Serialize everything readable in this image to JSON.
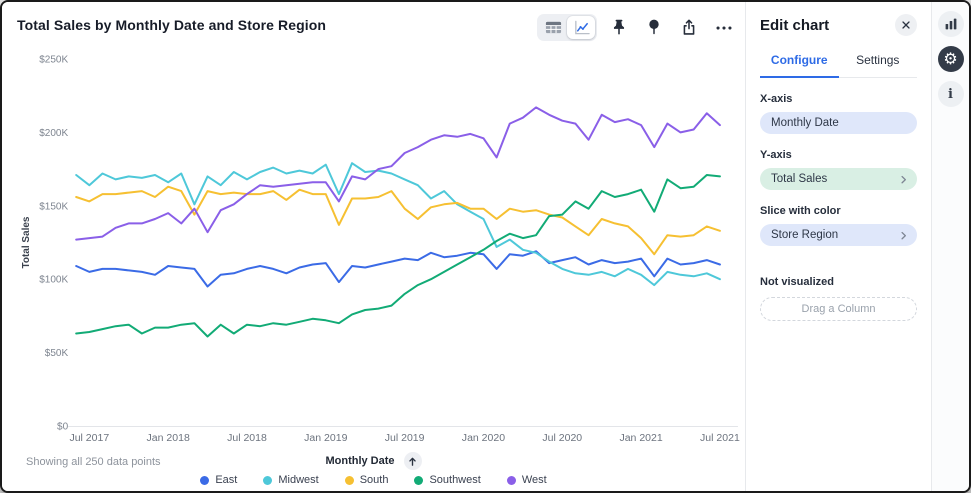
{
  "chart": {
    "title": "Total Sales by Monthly Date and Store Region",
    "footnote": "Showing all 250 data points",
    "x_axis_title": "Monthly Date",
    "y_axis_title": "Total Sales"
  },
  "toolbar": {
    "icons": [
      "table-view",
      "chart-view",
      "pin",
      "insight",
      "export",
      "more-options"
    ],
    "selected_view": "chart-view"
  },
  "panel": {
    "title": "Edit chart",
    "close_icon": "close-x",
    "tabs": [
      {
        "label": "Configure",
        "active": true
      },
      {
        "label": "Settings",
        "active": false
      }
    ],
    "fields": [
      {
        "label": "X-axis",
        "value": "Monthly Date",
        "pill_color": "#dfe7fa",
        "chevron": false
      },
      {
        "label": "Y-axis",
        "value": "Total Sales",
        "pill_color": "#d9efe4",
        "chevron": true
      },
      {
        "label": "Slice with color",
        "value": "Store Region",
        "pill_color": "#dfe7fa",
        "chevron": true
      }
    ],
    "not_visualized_label": "Not visualized",
    "drag_placeholder": "Drag a Column",
    "accent_color": "#2e6be6"
  },
  "rail": {
    "icons": [
      "chart-type",
      "settings-gear",
      "info"
    ],
    "active": "settings-gear"
  },
  "chart_data": {
    "type": "line",
    "title": "Total Sales by Monthly Date and Store Region",
    "xlabel": "Monthly Date",
    "ylabel": "Total Sales",
    "ylim": [
      0,
      250
    ],
    "y_unit": "$K (thousand dollars)",
    "grid": false,
    "legend_position": "bottom",
    "points_per_series": 50,
    "x_start": "Jun 2017",
    "x_end": "Jul 2021",
    "y_ticks": {
      "values": [
        0,
        50,
        100,
        150,
        200,
        250
      ],
      "labels": [
        "$0",
        "$50K",
        "$100K",
        "$150K",
        "$200K",
        "$250K"
      ]
    },
    "x_ticks": {
      "indices": [
        1,
        7,
        13,
        19,
        25,
        31,
        37,
        43,
        49
      ],
      "labels": [
        "Jul 2017",
        "Jan 2018",
        "Jul 2018",
        "Jan 2019",
        "Jul 2019",
        "Jan 2020",
        "Jul 2020",
        "Jan 2021",
        "Jul 2021"
      ]
    },
    "series": [
      {
        "name": "East",
        "color": "#3b6be6",
        "values": [
          109,
          105,
          107,
          107,
          106,
          105,
          103,
          109,
          108,
          107,
          95,
          103,
          104,
          107,
          109,
          107,
          104,
          108,
          110,
          111,
          98,
          109,
          108,
          110,
          112,
          114,
          113,
          118,
          115,
          116,
          118,
          117,
          107,
          117,
          116,
          119,
          111,
          113,
          115,
          110,
          113,
          111,
          112,
          114,
          102,
          114,
          110,
          111,
          113,
          110
        ]
      },
      {
        "name": "Midwest",
        "color": "#4ec8d9",
        "values": [
          171,
          164,
          172,
          168,
          170,
          169,
          171,
          166,
          172,
          151,
          170,
          164,
          173,
          168,
          173,
          176,
          172,
          174,
          172,
          178,
          158,
          179,
          173,
          174,
          172,
          168,
          164,
          155,
          160,
          151,
          146,
          141,
          122,
          127,
          120,
          118,
          112,
          107,
          104,
          103,
          105,
          102,
          107,
          103,
          96,
          105,
          103,
          102,
          104,
          100
        ]
      },
      {
        "name": "South",
        "color": "#f6c032",
        "values": [
          156,
          153,
          158,
          158,
          159,
          160,
          156,
          163,
          160,
          144,
          160,
          158,
          159,
          158,
          158,
          160,
          154,
          161,
          158,
          158,
          137,
          155,
          155,
          156,
          160,
          148,
          141,
          149,
          151,
          152,
          148,
          148,
          141,
          148,
          146,
          147,
          144,
          142,
          136,
          130,
          141,
          138,
          136,
          128,
          117,
          130,
          129,
          130,
          136,
          133
        ]
      },
      {
        "name": "Southwest",
        "color": "#12ab76",
        "values": [
          63,
          64,
          66,
          68,
          69,
          63,
          67,
          67,
          69,
          70,
          61,
          69,
          63,
          69,
          68,
          70,
          69,
          71,
          73,
          72,
          70,
          76,
          79,
          80,
          82,
          90,
          96,
          100,
          105,
          110,
          115,
          120,
          126,
          131,
          128,
          130,
          143,
          144,
          153,
          148,
          160,
          156,
          158,
          161,
          146,
          168,
          162,
          163,
          171,
          170
        ]
      },
      {
        "name": "West",
        "color": "#8a5fe8",
        "values": [
          127,
          128,
          129,
          135,
          138,
          138,
          141,
          145,
          138,
          148,
          132,
          147,
          151,
          158,
          164,
          163,
          164,
          165,
          166,
          166,
          153,
          170,
          168,
          175,
          177,
          186,
          190,
          195,
          198,
          197,
          199,
          196,
          183,
          206,
          210,
          217,
          212,
          208,
          206,
          195,
          212,
          207,
          209,
          205,
          190,
          206,
          200,
          202,
          213,
          205
        ]
      }
    ]
  }
}
